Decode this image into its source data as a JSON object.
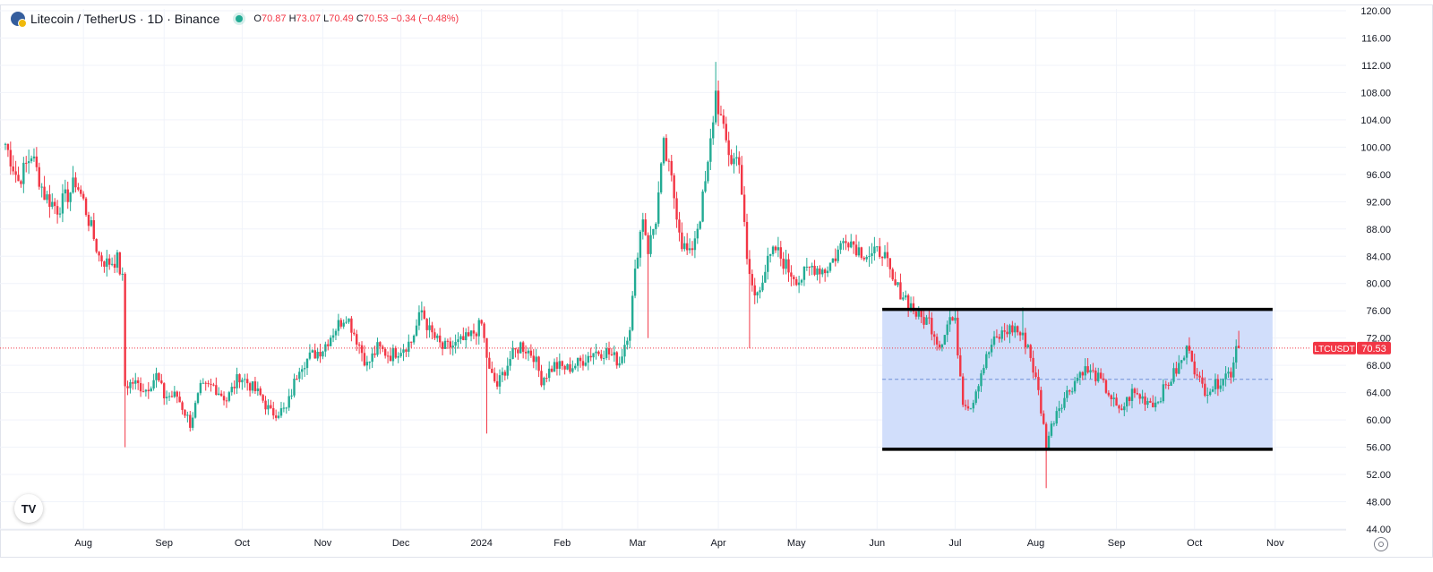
{
  "header": {
    "title": "Litecoin / TetherUS · 1D · Binance",
    "ohlc": {
      "open_label": "O",
      "open": "70.87",
      "high_label": "H",
      "high": "73.07",
      "low_label": "L",
      "low": "70.49",
      "close_label": "C",
      "close": "70.53",
      "change": "−0.34 (−0.48%)"
    }
  },
  "colors": {
    "up": "#22ab94",
    "down": "#f23645",
    "grid": "#f0f3fa",
    "box_fill": "#cfdcfb",
    "box_line": "#000000",
    "mid_line": "#6f8fd6",
    "axis_text": "#131722",
    "price_badge": "#f23645"
  },
  "chart_data": {
    "type": "candlestick",
    "symbol": "LTCUSDT",
    "last_price": 70.53,
    "ylim": [
      44,
      120
    ],
    "y_ticks": [
      "120.00",
      "116.00",
      "112.00",
      "108.00",
      "104.00",
      "100.00",
      "96.00",
      "92.00",
      "88.00",
      "84.00",
      "80.00",
      "76.00",
      "72.00",
      "68.00",
      "64.00",
      "60.00",
      "56.00",
      "52.00",
      "48.00",
      "44.00"
    ],
    "x_ticks": [
      {
        "label": "Aug",
        "date": "2023-08-01"
      },
      {
        "label": "Sep",
        "date": "2023-09-01"
      },
      {
        "label": "Oct",
        "date": "2023-10-01"
      },
      {
        "label": "Nov",
        "date": "2023-11-01"
      },
      {
        "label": "Dec",
        "date": "2023-12-01"
      },
      {
        "label": "2024",
        "date": "2024-01-01"
      },
      {
        "label": "Feb",
        "date": "2024-02-01"
      },
      {
        "label": "Mar",
        "date": "2024-03-01"
      },
      {
        "label": "Apr",
        "date": "2024-04-01"
      },
      {
        "label": "May",
        "date": "2024-05-01"
      },
      {
        "label": "Jun",
        "date": "2024-06-01"
      },
      {
        "label": "Jul",
        "date": "2024-07-01"
      },
      {
        "label": "Aug",
        "date": "2024-08-01"
      },
      {
        "label": "Sep",
        "date": "2024-09-01"
      },
      {
        "label": "Oct",
        "date": "2024-10-01"
      },
      {
        "label": "Nov",
        "date": "2024-11-01"
      }
    ],
    "xlim": [
      "2023-07-02",
      "2024-11-20"
    ],
    "price_path": [
      [
        "2023-07-02",
        100.5
      ],
      [
        "2023-07-07",
        95.0
      ],
      [
        "2023-07-12",
        99.0
      ],
      [
        "2023-07-17",
        93.0
      ],
      [
        "2023-07-22",
        91.0
      ],
      [
        "2023-07-27",
        93.5
      ],
      [
        "2023-07-29",
        95.0
      ],
      [
        "2023-08-01",
        92.0
      ],
      [
        "2023-08-04",
        88.0
      ],
      [
        "2023-08-07",
        84.0
      ],
      [
        "2023-08-10",
        83.0
      ],
      [
        "2023-08-14",
        83.5
      ],
      [
        "2023-08-16",
        80.5
      ],
      [
        "2023-08-17",
        65.0
      ],
      [
        "2023-08-20",
        65.5
      ],
      [
        "2023-08-25",
        64.5
      ],
      [
        "2023-08-29",
        66.5
      ],
      [
        "2023-09-01",
        63.5
      ],
      [
        "2023-09-06",
        63.5
      ],
      [
        "2023-09-11",
        59.5
      ],
      [
        "2023-09-15",
        64.5
      ],
      [
        "2023-09-20",
        65.0
      ],
      [
        "2023-09-25",
        63.0
      ],
      [
        "2023-09-30",
        66.5
      ],
      [
        "2023-10-03",
        65.5
      ],
      [
        "2023-10-08",
        63.5
      ],
      [
        "2023-10-12",
        61.0
      ],
      [
        "2023-10-18",
        61.5
      ],
      [
        "2023-10-23",
        68.0
      ],
      [
        "2023-10-28",
        69.5
      ],
      [
        "2023-11-01",
        70.5
      ],
      [
        "2023-11-05",
        73.0
      ],
      [
        "2023-11-10",
        75.5
      ],
      [
        "2023-11-15",
        71.0
      ],
      [
        "2023-11-18",
        68.0
      ],
      [
        "2023-11-22",
        70.5
      ],
      [
        "2023-11-27",
        69.5
      ],
      [
        "2023-12-01",
        70.5
      ],
      [
        "2023-12-05",
        71.5
      ],
      [
        "2023-12-09",
        76.0
      ],
      [
        "2023-12-12",
        73.0
      ],
      [
        "2023-12-17",
        70.5
      ],
      [
        "2023-12-22",
        71.0
      ],
      [
        "2023-12-27",
        72.0
      ],
      [
        "2024-01-01",
        74.0
      ],
      [
        "2024-01-04",
        67.0
      ],
      [
        "2024-01-07",
        65.0
      ],
      [
        "2024-01-12",
        69.0
      ],
      [
        "2024-01-16",
        71.0
      ],
      [
        "2024-01-21",
        69.5
      ],
      [
        "2024-01-24",
        66.0
      ],
      [
        "2024-01-29",
        68.0
      ],
      [
        "2024-02-03",
        67.5
      ],
      [
        "2024-02-08",
        68.5
      ],
      [
        "2024-02-13",
        70.0
      ],
      [
        "2024-02-18",
        70.0
      ],
      [
        "2024-02-23",
        68.5
      ],
      [
        "2024-02-27",
        74.0
      ],
      [
        "2024-03-01",
        85.0
      ],
      [
        "2024-03-03",
        90.0
      ],
      [
        "2024-03-05",
        85.0
      ],
      [
        "2024-03-08",
        89.5
      ],
      [
        "2024-03-11",
        100.0
      ],
      [
        "2024-03-14",
        95.0
      ],
      [
        "2024-03-18",
        86.0
      ],
      [
        "2024-03-21",
        84.0
      ],
      [
        "2024-03-25",
        90.0
      ],
      [
        "2024-03-28",
        97.0
      ],
      [
        "2024-03-31",
        108.0
      ],
      [
        "2024-04-03",
        102.0
      ],
      [
        "2024-04-06",
        98.0
      ],
      [
        "2024-04-09",
        98.5
      ],
      [
        "2024-04-12",
        83.0
      ],
      [
        "2024-04-15",
        78.0
      ],
      [
        "2024-04-20",
        83.0
      ],
      [
        "2024-04-23",
        85.0
      ],
      [
        "2024-04-28",
        82.0
      ],
      [
        "2024-05-02",
        80.5
      ],
      [
        "2024-05-07",
        82.5
      ],
      [
        "2024-05-12",
        82.0
      ],
      [
        "2024-05-16",
        84.0
      ],
      [
        "2024-05-20",
        87.0
      ],
      [
        "2024-05-25",
        85.0
      ],
      [
        "2024-05-30",
        84.0
      ],
      [
        "2024-06-03",
        85.0
      ],
      [
        "2024-06-07",
        80.0
      ],
      [
        "2024-06-12",
        78.0
      ],
      [
        "2024-06-17",
        75.0
      ],
      [
        "2024-06-21",
        74.5
      ],
      [
        "2024-06-25",
        71.0
      ],
      [
        "2024-06-29",
        75.0
      ],
      [
        "2024-07-01",
        74.0
      ],
      [
        "2024-07-04",
        63.0
      ],
      [
        "2024-07-07",
        62.0
      ],
      [
        "2024-07-11",
        67.0
      ],
      [
        "2024-07-15",
        71.0
      ],
      [
        "2024-07-20",
        73.0
      ],
      [
        "2024-07-24",
        73.5
      ],
      [
        "2024-07-29",
        71.0
      ],
      [
        "2024-08-02",
        64.0
      ],
      [
        "2024-08-05",
        56.5
      ],
      [
        "2024-08-09",
        61.5
      ],
      [
        "2024-08-14",
        64.5
      ],
      [
        "2024-08-19",
        67.5
      ],
      [
        "2024-08-24",
        66.5
      ],
      [
        "2024-08-29",
        64.0
      ],
      [
        "2024-09-02",
        61.0
      ],
      [
        "2024-09-07",
        64.0
      ],
      [
        "2024-09-12",
        63.0
      ],
      [
        "2024-09-16",
        62.5
      ],
      [
        "2024-09-21",
        65.5
      ],
      [
        "2024-09-26",
        68.5
      ],
      [
        "2024-09-29",
        71.0
      ],
      [
        "2024-10-02",
        66.0
      ],
      [
        "2024-10-05",
        64.5
      ],
      [
        "2024-10-09",
        65.0
      ],
      [
        "2024-10-12",
        66.5
      ],
      [
        "2024-10-15",
        67.0
      ],
      [
        "2024-10-17",
        70.87
      ],
      [
        "2024-10-18",
        70.53
      ]
    ],
    "last_candle": {
      "date": "2024-10-18",
      "open": 70.87,
      "high": 73.07,
      "low": 70.49,
      "close": 70.53
    },
    "extreme_wicks": [
      {
        "date": "2023-08-17",
        "low": 56.0
      },
      {
        "date": "2024-01-03",
        "low": 58.0
      },
      {
        "date": "2024-03-05",
        "low": 72.0
      },
      {
        "date": "2024-03-31",
        "high": 112.5
      },
      {
        "date": "2024-04-13",
        "low": 70.5
      },
      {
        "date": "2024-08-05",
        "low": 50.0
      },
      {
        "date": "2024-07-27",
        "high": 76.5
      }
    ],
    "range_box": {
      "start": "2024-06-03",
      "end": "2024-10-31",
      "top": 76.2,
      "bottom": 55.7,
      "mid": 65.95
    }
  }
}
